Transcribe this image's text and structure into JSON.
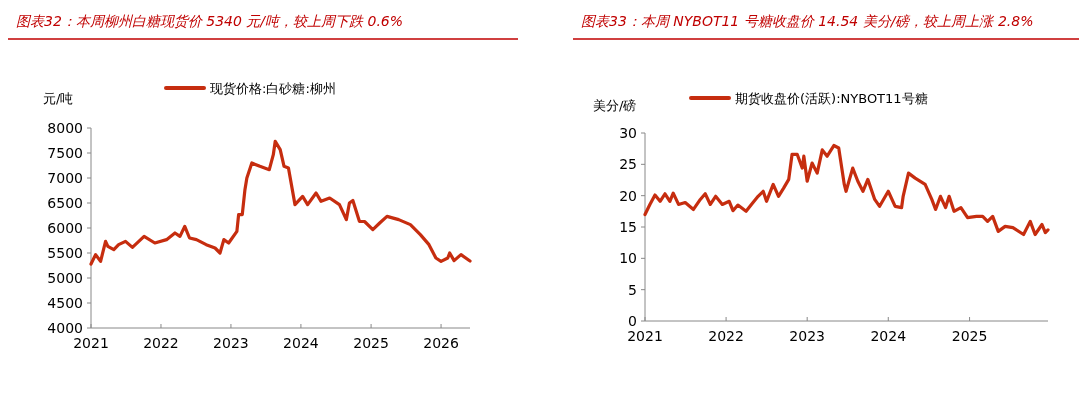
{
  "chart_data": [
    {
      "type": "line",
      "title": "图表32：本周柳州白糖现货价 5340 元/吨，较上周下跌 0.6%",
      "ylabel": "元/吨",
      "legend": "top",
      "grid": false,
      "x": [
        "2021-01-01",
        "2021-01-25",
        "2021-02-20",
        "2021-03-18",
        "2021-03-30",
        "2021-04-30",
        "2021-05-25",
        "2021-06-30",
        "2021-08-05",
        "2021-10-05",
        "2021-11-30",
        "2022-01-30",
        "2022-03-15",
        "2022-04-10",
        "2022-05-05",
        "2022-05-30",
        "2022-07-05",
        "2022-08-25",
        "2022-10-10",
        "2022-11-05",
        "2022-11-25",
        "2022-12-20",
        "2023-02-01",
        "2023-02-10",
        "2023-03-01",
        "2023-03-15",
        "2023-03-25",
        "2023-04-20",
        "2023-06-01",
        "2023-07-20",
        "2023-08-10",
        "2023-08-20",
        "2023-09-15",
        "2023-10-05",
        "2023-10-28",
        "2023-12-01",
        "2024-01-10",
        "2024-02-05",
        "2024-03-20",
        "2024-04-15",
        "2024-05-30",
        "2024-07-20",
        "2024-08-25",
        "2024-09-10",
        "2024-09-28",
        "2024-11-01",
        "2024-11-28",
        "2025-01-10",
        "2025-02-15",
        "2025-03-25",
        "2025-05-25",
        "2025-07-25",
        "2025-09-15",
        "2025-10-30",
        "2025-12-05",
        "2026-01-01",
        "2026-02-05",
        "2026-02-15",
        "2026-03-10",
        "2026-04-15",
        "2026-06-01"
      ],
      "series": [
        {
          "name": "现货价格:白砂糖:柳州",
          "color": "#c62d0f",
          "values": [
            5280,
            5467,
            5333,
            5733,
            5633,
            5567,
            5667,
            5733,
            5613,
            5833,
            5700,
            5767,
            5900,
            5833,
            6033,
            5800,
            5767,
            5667,
            5600,
            5500,
            5767,
            5700,
            5933,
            6267,
            6267,
            6767,
            7000,
            7300,
            7233,
            7167,
            7467,
            7733,
            7567,
            7233,
            7200,
            6467,
            6633,
            6467,
            6700,
            6533,
            6600,
            6467,
            6167,
            6500,
            6550,
            6133,
            6130,
            5967,
            6100,
            6233,
            6167,
            6067,
            5867,
            5667,
            5400,
            5333,
            5400,
            5500,
            5347,
            5467,
            5340
          ]
        }
      ],
      "xlim": [
        "2021-01-01",
        "2026-06-01"
      ],
      "xticks": [
        "2021",
        "2022",
        "2023",
        "2024",
        "2025",
        "2026"
      ],
      "ylim": [
        4000,
        8000
      ],
      "yticks": [
        4000,
        4500,
        5000,
        5500,
        6000,
        6500,
        7000,
        7500,
        8000
      ]
    },
    {
      "type": "line",
      "title": "图表33：本周 NYBOT11 号糖收盘价 14.54 美分/磅，较上周上涨 2.8%",
      "ylabel": "美分/磅",
      "legend": "top",
      "grid": false,
      "x": [
        "2021-01-01",
        "2021-01-23",
        "2021-02-15",
        "2021-03-10",
        "2021-04-01",
        "2021-04-23",
        "2021-05-08",
        "2021-06-01",
        "2021-07-01",
        "2021-08-07",
        "2021-09-07",
        "2021-09-29",
        "2021-10-22",
        "2021-11-15",
        "2021-12-15",
        "2022-01-15",
        "2022-02-01",
        "2022-02-23",
        "2022-04-01",
        "2022-04-25",
        "2022-05-25",
        "2022-06-17",
        "2022-07-02",
        "2022-08-01",
        "2022-08-25",
        "2022-09-17",
        "2022-10-10",
        "2022-10-25",
        "2022-11-17",
        "2022-12-10",
        "2022-12-17",
        "2023-01-01",
        "2023-01-23",
        "2023-02-15",
        "2023-03-10",
        "2023-04-01",
        "2023-05-01",
        "2023-05-23",
        "2023-06-17",
        "2023-06-25",
        "2023-07-25",
        "2023-08-17",
        "2023-09-09",
        "2023-10-01",
        "2023-11-01",
        "2023-11-23",
        "2024-01-01",
        "2024-02-01",
        "2024-03-01",
        "2024-03-08",
        "2024-04-01",
        "2024-05-01",
        "2024-06-15",
        "2024-07-15",
        "2024-08-01",
        "2024-08-23",
        "2024-09-15",
        "2024-10-01",
        "2024-10-23",
        "2024-11-23",
        "2024-12-23",
        "2025-02-01",
        "2025-03-01",
        "2025-03-23",
        "2025-04-15",
        "2025-05-10",
        "2025-06-10",
        "2025-07-15",
        "2025-09-01",
        "2025-10-01",
        "2025-10-23",
        "2025-11-23",
        "2025-12-08",
        "2025-12-20"
      ],
      "series": [
        {
          "name": "期货收盘价(活跃):NYBOT11号糖",
          "color": "#c62d0f",
          "values": [
            17.0,
            18.6,
            20.1,
            19.1,
            20.3,
            19.1,
            20.4,
            18.6,
            18.9,
            17.8,
            19.4,
            20.3,
            18.6,
            19.9,
            18.6,
            19.1,
            17.6,
            18.5,
            17.5,
            18.6,
            19.9,
            20.7,
            19.1,
            21.8,
            19.9,
            21.2,
            22.6,
            26.6,
            26.6,
            24.4,
            26.3,
            22.3,
            25.2,
            23.6,
            27.3,
            26.3,
            28.0,
            27.6,
            21.8,
            20.7,
            24.4,
            22.3,
            20.7,
            22.6,
            19.4,
            18.3,
            20.7,
            18.3,
            18.1,
            19.9,
            23.6,
            22.8,
            21.8,
            19.4,
            17.8,
            19.9,
            18.1,
            19.9,
            17.5,
            18.1,
            16.5,
            16.7,
            16.7,
            15.9,
            16.7,
            14.3,
            15.1,
            14.9,
            13.8,
            15.9,
            13.8,
            15.4,
            14.1,
            14.54
          ]
        }
      ],
      "xlim": [
        "2021-01-01",
        "2025-12-20"
      ],
      "xticks": [
        "2021",
        "2022",
        "2023",
        "2024",
        "2025"
      ],
      "ylim": [
        0,
        30
      ],
      "yticks": [
        0,
        5,
        10,
        15,
        20,
        25,
        30
      ]
    }
  ]
}
